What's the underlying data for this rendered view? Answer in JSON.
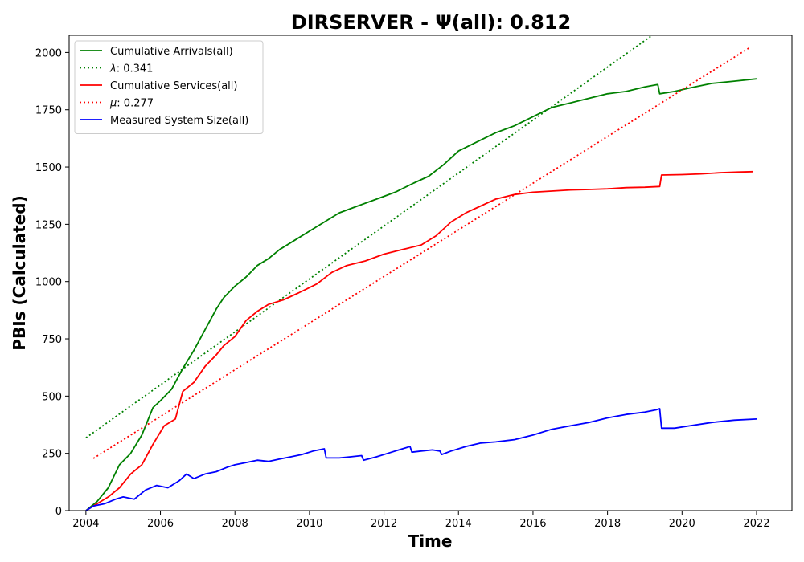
{
  "chart_data": {
    "type": "line",
    "title": "DIRSERVER -  Ψ(all): 0.812",
    "xlabel": "Time",
    "ylabel": "PBIs (Calculated)",
    "xlim": [
      2003.55,
      2022.95
    ],
    "ylim": [
      0,
      2075
    ],
    "x_ticks": [
      "2004",
      "2006",
      "2008",
      "2010",
      "2012",
      "2014",
      "2016",
      "2018",
      "2020",
      "2022"
    ],
    "y_ticks": [
      "0",
      "250",
      "500",
      "750",
      "1000",
      "1250",
      "1500",
      "1750",
      "2000"
    ],
    "grid": false,
    "legend_position": "top-left",
    "series": [
      {
        "name": "Cumulative Arrivals(all)",
        "color": "#008000",
        "style": "solid",
        "x": [
          2004.0,
          2004.3,
          2004.6,
          2004.9,
          2005.2,
          2005.5,
          2005.8,
          2006.0,
          2006.3,
          2006.6,
          2006.9,
          2007.2,
          2007.5,
          2007.7,
          2008.0,
          2008.3,
          2008.6,
          2008.9,
          2009.2,
          2009.6,
          2010.0,
          2010.4,
          2010.8,
          2011.3,
          2011.8,
          2012.3,
          2012.8,
          2013.2,
          2013.6,
          2014.0,
          2014.5,
          2015.0,
          2015.5,
          2016.0,
          2016.5,
          2017.0,
          2017.5,
          2018.0,
          2018.5,
          2019.0,
          2019.35,
          2019.4,
          2019.8,
          2020.2,
          2020.8,
          2021.4,
          2022.0
        ],
        "values": [
          0,
          40,
          100,
          200,
          250,
          330,
          450,
          480,
          530,
          620,
          700,
          790,
          880,
          930,
          980,
          1020,
          1070,
          1100,
          1140,
          1180,
          1220,
          1260,
          1300,
          1330,
          1360,
          1390,
          1430,
          1460,
          1510,
          1570,
          1610,
          1650,
          1680,
          1720,
          1760,
          1780,
          1800,
          1820,
          1830,
          1850,
          1860,
          1820,
          1830,
          1845,
          1865,
          1875,
          1885
        ]
      },
      {
        "name": "λ: 0.341",
        "color": "#008000",
        "style": "dotted",
        "x": [
          2004.0,
          2019.2
        ],
        "values": [
          318,
          2075
        ]
      },
      {
        "name": "Cumulative Services(all)",
        "color": "#ff0000",
        "style": "solid",
        "x": [
          2004.0,
          2004.3,
          2004.6,
          2004.9,
          2005.2,
          2005.5,
          2005.8,
          2006.1,
          2006.4,
          2006.6,
          2006.9,
          2007.2,
          2007.5,
          2007.7,
          2008.0,
          2008.3,
          2008.6,
          2008.9,
          2009.3,
          2009.7,
          2010.2,
          2010.6,
          2011.0,
          2011.5,
          2012.0,
          2012.5,
          2013.0,
          2013.4,
          2013.8,
          2014.2,
          2014.6,
          2015.0,
          2015.5,
          2016.0,
          2016.5,
          2017.0,
          2017.5,
          2018.0,
          2018.5,
          2019.0,
          2019.4,
          2019.45,
          2020.0,
          2020.5,
          2021.0,
          2021.5,
          2021.9
        ],
        "values": [
          0,
          30,
          60,
          100,
          160,
          200,
          290,
          370,
          400,
          520,
          560,
          630,
          680,
          720,
          760,
          830,
          870,
          900,
          920,
          950,
          990,
          1040,
          1070,
          1090,
          1120,
          1140,
          1160,
          1200,
          1260,
          1300,
          1330,
          1360,
          1380,
          1390,
          1395,
          1400,
          1402,
          1405,
          1410,
          1412,
          1415,
          1465,
          1467,
          1470,
          1475,
          1478,
          1480
        ]
      },
      {
        "name": "μ: 0.277",
        "color": "#ff0000",
        "style": "dotted",
        "x": [
          2004.2,
          2021.8
        ],
        "values": [
          228,
          2020
        ]
      },
      {
        "name": "Measured System Size(all)",
        "color": "#0000ff",
        "style": "solid",
        "x": [
          2004.0,
          2004.2,
          2004.5,
          2004.8,
          2005.0,
          2005.3,
          2005.6,
          2005.9,
          2006.2,
          2006.5,
          2006.7,
          2006.9,
          2007.2,
          2007.5,
          2007.8,
          2008.0,
          2008.3,
          2008.6,
          2008.9,
          2009.2,
          2009.5,
          2009.8,
          2010.1,
          2010.4,
          2010.45,
          2010.8,
          2011.1,
          2011.4,
          2011.45,
          2011.8,
          2012.1,
          2012.4,
          2012.7,
          2012.75,
          2013.0,
          2013.3,
          2013.5,
          2013.55,
          2013.8,
          2014.2,
          2014.6,
          2015.0,
          2015.5,
          2016.0,
          2016.5,
          2017.0,
          2017.5,
          2018.0,
          2018.5,
          2019.0,
          2019.3,
          2019.4,
          2019.45,
          2019.8,
          2020.2,
          2020.8,
          2021.4,
          2022.0
        ],
        "values": [
          0,
          20,
          30,
          50,
          60,
          50,
          90,
          110,
          100,
          130,
          160,
          140,
          160,
          170,
          190,
          200,
          210,
          220,
          215,
          225,
          235,
          245,
          260,
          270,
          230,
          230,
          235,
          240,
          220,
          235,
          250,
          265,
          280,
          255,
          260,
          265,
          260,
          245,
          260,
          280,
          295,
          300,
          310,
          330,
          355,
          370,
          385,
          405,
          420,
          430,
          440,
          445,
          360,
          360,
          370,
          385,
          395,
          400
        ]
      }
    ]
  }
}
